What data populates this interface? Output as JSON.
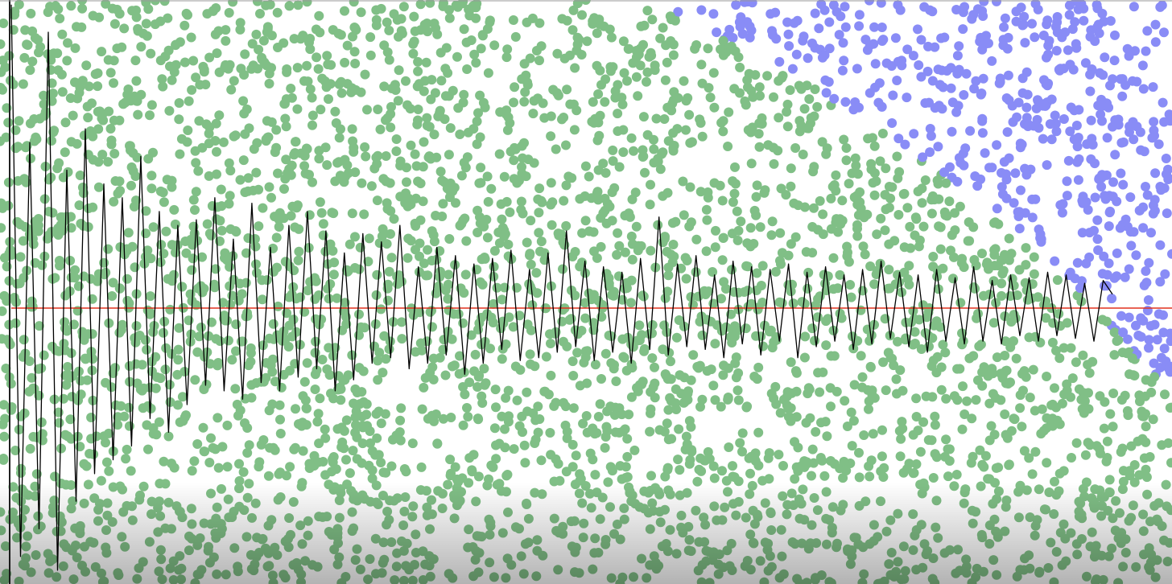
{
  "chart_data": {
    "type": "line",
    "ylim": [
      -1,
      1
    ],
    "reference_line": {
      "value": 0,
      "color": "#e0301e"
    },
    "series": [
      {
        "color": "#000000",
        "values": [
          1.1,
          -0.9,
          0.6,
          -0.8,
          1.0,
          -0.95,
          0.5,
          -0.7,
          0.65,
          -0.6,
          0.45,
          -0.55,
          0.4,
          -0.5,
          0.55,
          -0.4,
          0.35,
          -0.45,
          0.3,
          -0.35,
          0.32,
          -0.28,
          0.4,
          -0.3,
          0.25,
          -0.33,
          0.38,
          -0.27,
          0.22,
          -0.3,
          0.3,
          -0.25,
          0.35,
          -0.22,
          0.28,
          -0.3,
          0.2,
          -0.26,
          0.27,
          -0.2,
          0.24,
          -0.18,
          0.3,
          -0.22,
          0.15,
          -0.2,
          0.22,
          -0.17,
          0.19,
          -0.24,
          0.16,
          -0.2,
          0.18,
          -0.15,
          0.21,
          -0.19,
          0.14,
          -0.18,
          0.2,
          -0.16,
          0.28,
          -0.14,
          0.17,
          -0.19,
          0.15,
          -0.16,
          0.13,
          -0.2,
          0.18,
          -0.15,
          0.33,
          -0.17,
          0.16,
          -0.14,
          0.19,
          -0.15,
          0.12,
          -0.18,
          0.17,
          -0.13,
          0.15,
          -0.17,
          0.14,
          -0.12,
          0.16,
          -0.18,
          0.13,
          -0.14,
          0.15,
          -0.12,
          0.12,
          -0.15,
          0.14,
          -0.13,
          0.17,
          -0.11,
          0.13,
          -0.14,
          0.12,
          -0.16,
          0.14,
          -0.12,
          0.11,
          -0.13,
          0.15,
          -0.12,
          0.1,
          -0.13,
          0.12,
          -0.1,
          0.11,
          -0.12,
          0.13,
          -0.1,
          0.12,
          -0.11,
          0.09,
          -0.12,
          0.1,
          0.05
        ]
      }
    ]
  }
}
